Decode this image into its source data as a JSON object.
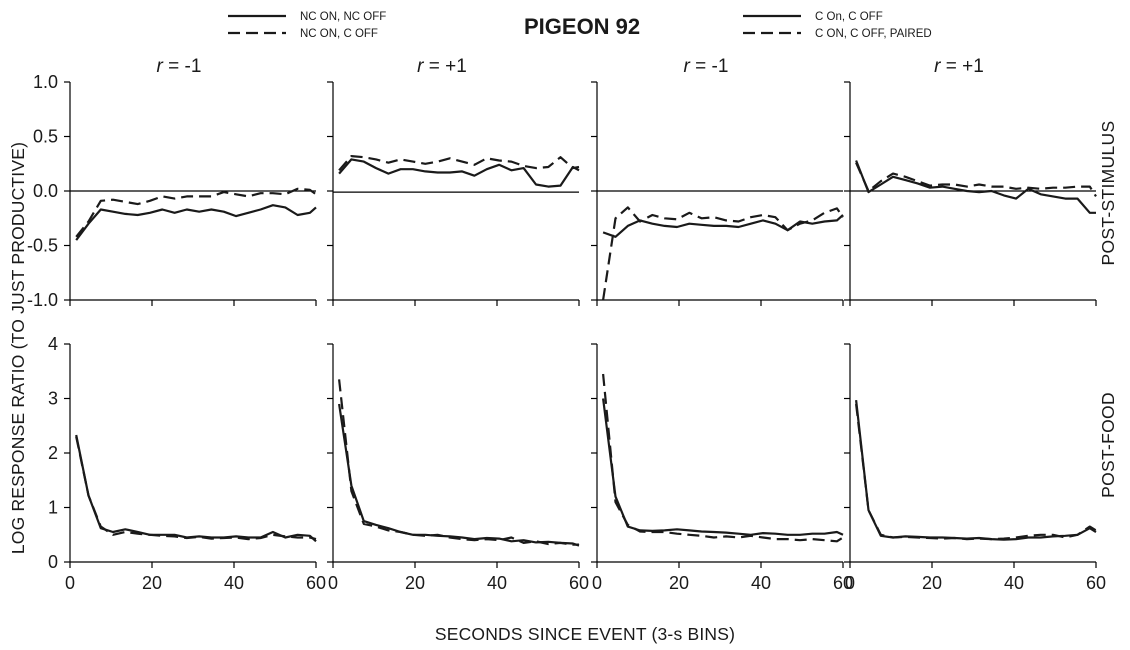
{
  "figure": {
    "title": "PIGEON 92",
    "xlabel": "SECONDS SINCE EVENT (3-s BINS)",
    "ylabel": "LOG RESPONSE RATIO (TO JUST PRODUCTIVE)",
    "row_labels": [
      "POST-STIMULUS",
      "POST-FOOD"
    ],
    "legend_left": [
      {
        "label": "NC ON, NC OFF",
        "style": "solid"
      },
      {
        "label": "NC ON, C OFF",
        "style": "dashed"
      }
    ],
    "legend_right": [
      {
        "label": "C On, C OFF",
        "style": "solid"
      },
      {
        "label": "C ON, C OFF, PAIRED",
        "style": "dashed"
      }
    ],
    "colors": {
      "line": "#1a1a1a",
      "background": "#ffffff"
    }
  },
  "chart_data": [
    {
      "type": "line",
      "row": "POST-STIMULUS",
      "col_label": "r = -1",
      "legend": "left",
      "ylim": [
        -1.0,
        1.0
      ],
      "xlim": [
        0,
        60
      ],
      "ref_y": 0,
      "yticks": [
        "1.0",
        "0.5",
        "0.0",
        "-0.5",
        "-1.0"
      ],
      "xticks": [],
      "series": [
        {
          "name": "NC ON, NC OFF",
          "style": "solid",
          "x": [
            1.5,
            4.5,
            7.5,
            10.5,
            13.5,
            16.5,
            19.5,
            22.5,
            25.5,
            28.5,
            31.5,
            34.5,
            37.5,
            40.5,
            43.5,
            46.5,
            49.5,
            52.5,
            55.5,
            58.5,
            60
          ],
          "y": [
            -0.45,
            -0.3,
            -0.17,
            -0.19,
            -0.21,
            -0.22,
            -0.2,
            -0.17,
            -0.2,
            -0.17,
            -0.19,
            -0.17,
            -0.19,
            -0.23,
            -0.2,
            -0.17,
            -0.13,
            -0.15,
            -0.22,
            -0.2,
            -0.15
          ]
        },
        {
          "name": "NC ON, C OFF",
          "style": "dashed",
          "x": [
            1.5,
            4.5,
            7.5,
            10.5,
            13.5,
            16.5,
            19.5,
            22.5,
            25.5,
            28.5,
            31.5,
            34.5,
            37.5,
            40.5,
            43.5,
            46.5,
            49.5,
            52.5,
            55.5,
            58.5,
            60
          ],
          "y": [
            -0.42,
            -0.28,
            -0.09,
            -0.08,
            -0.1,
            -0.12,
            -0.09,
            -0.05,
            -0.07,
            -0.05,
            -0.05,
            -0.05,
            -0.01,
            -0.03,
            -0.05,
            -0.02,
            -0.02,
            -0.03,
            0.02,
            0.01,
            -0.03
          ]
        }
      ]
    },
    {
      "type": "line",
      "row": "POST-STIMULUS",
      "col_label": "r = +1",
      "legend": "left",
      "ylim": [
        -1.0,
        1.0
      ],
      "xlim": [
        0,
        60
      ],
      "ref_y": -0.01,
      "yticks": [],
      "xticks": [],
      "series": [
        {
          "name": "NC ON, NC OFF",
          "style": "solid",
          "x": [
            1.5,
            4.5,
            7.5,
            10.5,
            13.5,
            16.5,
            19.5,
            22.5,
            25.5,
            28.5,
            31.5,
            34.5,
            37.5,
            40.5,
            43.5,
            46.5,
            49.5,
            52.5,
            55.5,
            58.5,
            60
          ],
          "y": [
            0.16,
            0.29,
            0.27,
            0.21,
            0.16,
            0.2,
            0.2,
            0.18,
            0.17,
            0.17,
            0.18,
            0.14,
            0.2,
            0.24,
            0.19,
            0.21,
            0.06,
            0.04,
            0.05,
            0.22,
            0.19
          ]
        },
        {
          "name": "NC ON, C OFF",
          "style": "dashed",
          "x": [
            1.5,
            4.5,
            7.5,
            10.5,
            13.5,
            16.5,
            19.5,
            22.5,
            25.5,
            28.5,
            31.5,
            34.5,
            37.5,
            40.5,
            43.5,
            46.5,
            49.5,
            52.5,
            55.5,
            58.5,
            60
          ],
          "y": [
            0.19,
            0.32,
            0.31,
            0.29,
            0.26,
            0.29,
            0.27,
            0.25,
            0.27,
            0.3,
            0.27,
            0.24,
            0.3,
            0.28,
            0.27,
            0.23,
            0.21,
            0.22,
            0.31,
            0.21,
            0.22
          ]
        }
      ]
    },
    {
      "type": "line",
      "row": "POST-STIMULUS",
      "col_label": "r = -1",
      "legend": "right",
      "ylim": [
        -1.0,
        1.0
      ],
      "xlim": [
        0,
        60
      ],
      "ref_y": 0,
      "yticks": [],
      "xticks": [],
      "series": [
        {
          "name": "C On, C OFF",
          "style": "solid",
          "x": [
            1.5,
            4.5,
            7.5,
            10.5,
            13.5,
            16.5,
            19.5,
            22.5,
            25.5,
            28.5,
            31.5,
            34.5,
            37.5,
            40.5,
            43.5,
            46.5,
            49.5,
            52.5,
            55.5,
            58.5,
            60
          ],
          "y": [
            -0.38,
            -0.42,
            -0.32,
            -0.27,
            -0.3,
            -0.32,
            -0.33,
            -0.3,
            -0.31,
            -0.32,
            -0.32,
            -0.33,
            -0.3,
            -0.27,
            -0.3,
            -0.36,
            -0.28,
            -0.3,
            -0.28,
            -0.27,
            -0.22
          ]
        },
        {
          "name": "C ON, C OFF, PAIRED",
          "style": "dashed",
          "x": [
            1.5,
            4.5,
            7.5,
            10.5,
            13.5,
            16.5,
            19.5,
            22.5,
            25.5,
            28.5,
            31.5,
            34.5,
            37.5,
            40.5,
            43.5,
            46.5,
            49.5,
            52.5,
            55.5,
            58.5,
            60
          ],
          "y": [
            -1.0,
            -0.25,
            -0.15,
            -0.28,
            -0.22,
            -0.25,
            -0.26,
            -0.2,
            -0.25,
            -0.24,
            -0.27,
            -0.28,
            -0.24,
            -0.22,
            -0.24,
            -0.36,
            -0.3,
            -0.27,
            -0.2,
            -0.16,
            -0.24
          ]
        }
      ]
    },
    {
      "type": "line",
      "row": "POST-STIMULUS",
      "col_label": "r = +1",
      "legend": "right",
      "ylim": [
        -1.0,
        1.0
      ],
      "xlim": [
        0,
        60
      ],
      "ref_y": 0,
      "yticks": [],
      "xticks": [],
      "series": [
        {
          "name": "C On, C OFF",
          "style": "solid",
          "x": [
            1.5,
            4.5,
            7.5,
            10.5,
            13.5,
            16.5,
            19.5,
            22.5,
            25.5,
            28.5,
            31.5,
            34.5,
            37.5,
            40.5,
            43.5,
            46.5,
            49.5,
            52.5,
            55.5,
            58.5,
            60
          ],
          "y": [
            0.28,
            -0.01,
            0.06,
            0.13,
            0.1,
            0.07,
            0.03,
            0.04,
            0.02,
            0.0,
            -0.01,
            0.0,
            -0.04,
            -0.07,
            0.02,
            -0.03,
            -0.05,
            -0.07,
            -0.07,
            -0.2,
            -0.2
          ]
        },
        {
          "name": "C ON, C OFF, PAIRED",
          "style": "dashed",
          "x": [
            1.5,
            4.5,
            7.5,
            10.5,
            13.5,
            16.5,
            19.5,
            22.5,
            25.5,
            28.5,
            31.5,
            34.5,
            37.5,
            40.5,
            43.5,
            46.5,
            49.5,
            52.5,
            55.5,
            58.5,
            60
          ],
          "y": [
            0.26,
            0.0,
            0.09,
            0.16,
            0.13,
            0.09,
            0.05,
            0.06,
            0.06,
            0.04,
            0.06,
            0.04,
            0.04,
            0.02,
            0.03,
            0.02,
            0.03,
            0.03,
            0.04,
            0.04,
            -0.05
          ]
        }
      ]
    },
    {
      "type": "line",
      "row": "POST-FOOD",
      "col_label": "",
      "legend": "left",
      "ylim": [
        0,
        4
      ],
      "xlim": [
        0,
        60
      ],
      "ref_y": null,
      "yticks": [
        "4",
        "3",
        "2",
        "1",
        "0"
      ],
      "xticks": [
        "0",
        "20",
        "40",
        "60"
      ],
      "series": [
        {
          "name": "NC ON, NC OFF",
          "style": "solid",
          "x": [
            1.5,
            4.5,
            7.5,
            10.5,
            13.5,
            16.5,
            19.5,
            22.5,
            25.5,
            28.5,
            31.5,
            34.5,
            37.5,
            40.5,
            43.5,
            46.5,
            49.5,
            52.5,
            55.5,
            58.5,
            60
          ],
          "y": [
            2.33,
            1.22,
            0.62,
            0.55,
            0.6,
            0.55,
            0.5,
            0.5,
            0.5,
            0.45,
            0.47,
            0.45,
            0.45,
            0.47,
            0.45,
            0.45,
            0.55,
            0.45,
            0.5,
            0.48,
            0.38
          ]
        },
        {
          "name": "NC ON, C OFF",
          "style": "dashed",
          "x": [
            1.5,
            4.5,
            7.5,
            10.5,
            13.5,
            16.5,
            19.5,
            22.5,
            25.5,
            28.5,
            31.5,
            34.5,
            37.5,
            40.5,
            43.5,
            46.5,
            49.5,
            52.5,
            55.5,
            58.5,
            60
          ],
          "y": [
            2.3,
            1.22,
            0.65,
            0.5,
            0.55,
            0.52,
            0.5,
            0.48,
            0.47,
            0.44,
            0.46,
            0.43,
            0.44,
            0.45,
            0.42,
            0.44,
            0.5,
            0.47,
            0.45,
            0.45,
            0.42
          ]
        }
      ]
    },
    {
      "type": "line",
      "row": "POST-FOOD",
      "col_label": "",
      "legend": "left",
      "ylim": [
        0,
        4
      ],
      "xlim": [
        0,
        60
      ],
      "ref_y": null,
      "yticks": [],
      "xticks": [
        "0",
        "20",
        "40",
        "60"
      ],
      "series": [
        {
          "name": "NC ON, NC OFF",
          "style": "solid",
          "x": [
            1.5,
            4.5,
            7.5,
            10.5,
            13.5,
            16.5,
            19.5,
            22.5,
            25.5,
            28.5,
            31.5,
            34.5,
            37.5,
            40.5,
            43.5,
            46.5,
            49.5,
            52.5,
            55.5,
            58.5,
            60
          ],
          "y": [
            2.9,
            1.4,
            0.75,
            0.68,
            0.62,
            0.55,
            0.5,
            0.5,
            0.48,
            0.47,
            0.45,
            0.42,
            0.44,
            0.43,
            0.38,
            0.4,
            0.36,
            0.37,
            0.35,
            0.34,
            0.3
          ]
        },
        {
          "name": "NC ON, C OFF",
          "style": "dashed",
          "x": [
            1.5,
            4.5,
            7.5,
            10.5,
            13.5,
            16.5,
            19.5,
            22.5,
            25.5,
            28.5,
            31.5,
            34.5,
            37.5,
            40.5,
            43.5,
            46.5,
            49.5,
            52.5,
            55.5,
            58.5,
            60
          ],
          "y": [
            3.35,
            1.3,
            0.7,
            0.65,
            0.58,
            0.55,
            0.5,
            0.48,
            0.5,
            0.45,
            0.42,
            0.4,
            0.42,
            0.4,
            0.45,
            0.35,
            0.38,
            0.33,
            0.35,
            0.32,
            0.32
          ]
        }
      ]
    },
    {
      "type": "line",
      "row": "POST-FOOD",
      "col_label": "",
      "legend": "right",
      "ylim": [
        0,
        4
      ],
      "xlim": [
        0,
        60
      ],
      "ref_y": null,
      "yticks": [],
      "xticks": [
        "0",
        "20",
        "40",
        "60"
      ],
      "series": [
        {
          "name": "C On, C OFF",
          "style": "solid",
          "x": [
            1.5,
            4.5,
            7.5,
            10.5,
            13.5,
            16.5,
            19.5,
            22.5,
            25.5,
            28.5,
            31.5,
            34.5,
            37.5,
            40.5,
            43.5,
            46.5,
            49.5,
            52.5,
            55.5,
            58.5,
            60
          ],
          "y": [
            3.0,
            1.2,
            0.65,
            0.58,
            0.57,
            0.58,
            0.6,
            0.58,
            0.56,
            0.55,
            0.54,
            0.52,
            0.5,
            0.53,
            0.52,
            0.5,
            0.5,
            0.52,
            0.52,
            0.55,
            0.5
          ]
        },
        {
          "name": "C ON, C OFF, PAIRED",
          "style": "dashed",
          "x": [
            1.5,
            4.5,
            7.5,
            10.5,
            13.5,
            16.5,
            19.5,
            22.5,
            25.5,
            28.5,
            31.5,
            34.5,
            37.5,
            40.5,
            43.5,
            46.5,
            49.5,
            52.5,
            55.5,
            58.5,
            60
          ],
          "y": [
            3.45,
            1.1,
            0.68,
            0.56,
            0.55,
            0.55,
            0.52,
            0.5,
            0.48,
            0.45,
            0.47,
            0.45,
            0.48,
            0.45,
            0.42,
            0.42,
            0.4,
            0.42,
            0.4,
            0.38,
            0.45
          ]
        }
      ]
    },
    {
      "type": "line",
      "row": "POST-FOOD",
      "col_label": "",
      "legend": "right",
      "ylim": [
        0,
        4
      ],
      "xlim": [
        0,
        60
      ],
      "ref_y": null,
      "yticks": [],
      "xticks": [
        "0",
        "20",
        "40",
        "60"
      ],
      "series": [
        {
          "name": "C On, C OFF",
          "style": "solid",
          "x": [
            1.5,
            4.5,
            7.5,
            10.5,
            13.5,
            16.5,
            19.5,
            22.5,
            25.5,
            28.5,
            31.5,
            34.5,
            37.5,
            40.5,
            43.5,
            46.5,
            49.5,
            52.5,
            55.5,
            58.5,
            60
          ],
          "y": [
            2.97,
            0.95,
            0.48,
            0.45,
            0.47,
            0.46,
            0.45,
            0.45,
            0.44,
            0.43,
            0.44,
            0.42,
            0.41,
            0.42,
            0.45,
            0.45,
            0.47,
            0.48,
            0.5,
            0.62,
            0.55
          ]
        },
        {
          "name": "C ON, C OFF, PAIRED",
          "style": "dashed",
          "x": [
            1.5,
            4.5,
            7.5,
            10.5,
            13.5,
            16.5,
            19.5,
            22.5,
            25.5,
            28.5,
            31.5,
            34.5,
            37.5,
            40.5,
            43.5,
            46.5,
            49.5,
            52.5,
            55.5,
            58.5,
            60
          ],
          "y": [
            2.9,
            0.95,
            0.5,
            0.45,
            0.46,
            0.45,
            0.44,
            0.43,
            0.44,
            0.42,
            0.43,
            0.42,
            0.43,
            0.45,
            0.48,
            0.5,
            0.5,
            0.45,
            0.5,
            0.65,
            0.58
          ]
        }
      ]
    }
  ]
}
